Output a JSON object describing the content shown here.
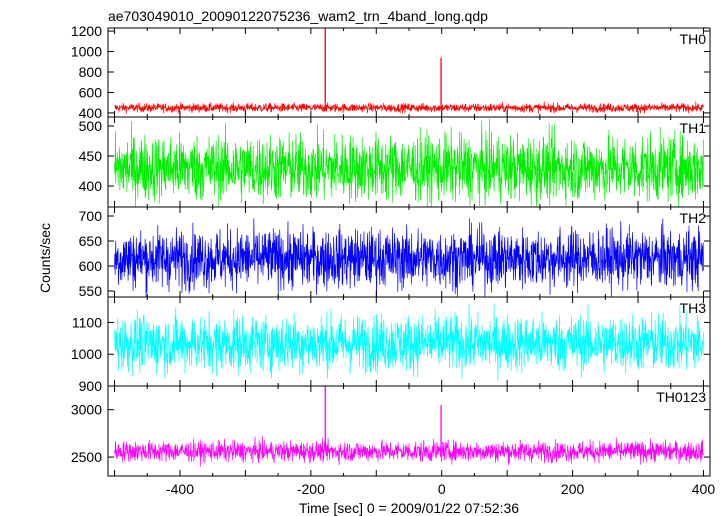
{
  "title": "ae703049010_20090122075236_wam2_trn_4band_long.qdp",
  "ylabel": "Counts/sec",
  "xlabel": "Time [sec] 0 = 2009/01/22 07:52:36",
  "chart_data": [
    {
      "type": "line",
      "label": "TH0",
      "color": "#ff0000",
      "xlim": [
        -510,
        410
      ],
      "ylim": [
        360,
        1230
      ],
      "yticks": [
        "400",
        "600",
        "800",
        "1000",
        "1200"
      ],
      "baseline": 450,
      "noise": 22,
      "spikes": [
        {
          "x": -178,
          "y": 1240
        },
        {
          "x": -1,
          "y": 940
        }
      ]
    },
    {
      "type": "line",
      "label": "TH1",
      "color": "#00ee00",
      "xlim": [
        -510,
        410
      ],
      "ylim": [
        365,
        515
      ],
      "yticks": [
        "400",
        "450",
        "500"
      ],
      "baseline": 430,
      "noise": 28,
      "spikes": []
    },
    {
      "type": "line",
      "label": "TH2",
      "color": "#0000ff",
      "xlim": [
        -510,
        410
      ],
      "ylim": [
        538,
        718
      ],
      "yticks": [
        "550",
        "600",
        "650",
        "700"
      ],
      "baseline": 615,
      "noise": 30,
      "spikes": []
    },
    {
      "type": "line",
      "label": "TH3",
      "color": "#00ffff",
      "xlim": [
        -510,
        410
      ],
      "ylim": [
        900,
        1180
      ],
      "yticks": [
        "900",
        "1000",
        "1100"
      ],
      "baseline": 1035,
      "noise": 45,
      "spikes": []
    },
    {
      "type": "line",
      "label": "TH0123",
      "color": "#ff00ff",
      "xlim": [
        -510,
        410
      ],
      "ylim": [
        2300,
        3250
      ],
      "yticks": [
        "2500",
        "3000"
      ],
      "baseline": 2560,
      "noise": 55,
      "spikes": [
        {
          "x": -178,
          "y": 3250
        },
        {
          "x": -1,
          "y": 3050
        }
      ]
    }
  ],
  "xticks": [
    "-400",
    "-200",
    "0",
    "200",
    "400"
  ]
}
